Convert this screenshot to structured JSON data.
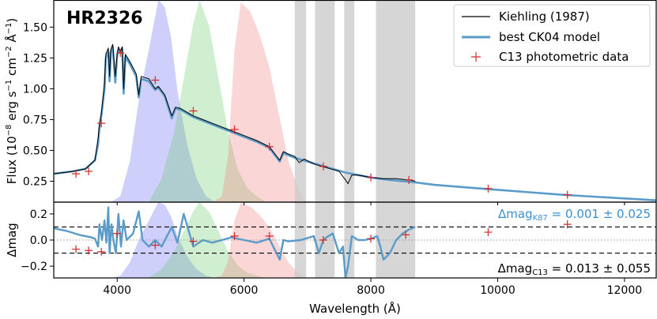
{
  "chart_data": [
    {
      "type": "line",
      "panel": "top",
      "title": "HR2326",
      "ylabel": "Flux (10^-8 erg s^-1 cm^-2 Å^-1)",
      "ylabel_parts": {
        "lead": "Flux (10",
        "exp1": "−8",
        "mid1": " erg s",
        "exp2": "−1",
        "mid2": " cm",
        "exp3": "−2",
        "mid3": " Å",
        "exp4": "−1",
        "tail": ")"
      },
      "xlim": [
        3000,
        12500
      ],
      "ylim": [
        0.08,
        1.72
      ],
      "yticks": [
        0.25,
        0.5,
        0.75,
        1.0,
        1.25,
        1.5
      ],
      "ytick_labels": [
        "0.25",
        "0.50",
        "0.75",
        "1.00",
        "1.25",
        "1.50"
      ],
      "legend": {
        "placement": "top-right",
        "entries": [
          "Kiehling (1987)",
          "best CK04 model",
          "C13 photometric data"
        ]
      },
      "series": [
        {
          "name": "Kiehling (1987)",
          "color": "#000000",
          "x": [
            3000,
            3300,
            3500,
            3650,
            3700,
            3720,
            3750,
            3800,
            3820,
            3860,
            3880,
            3900,
            3930,
            3970,
            4000,
            4020,
            4050,
            4080,
            4102,
            4130,
            4200,
            4300,
            4340,
            4380,
            4500,
            4600,
            4650,
            4750,
            4861,
            4920,
            5000,
            5200,
            5400,
            5600,
            5800,
            6000,
            6200,
            6400,
            6563,
            6620,
            6700,
            6800,
            6870,
            6950,
            7100,
            7300,
            7500,
            7600,
            7640,
            7700,
            7800,
            8000,
            8200,
            8400,
            8600,
            8700
          ],
          "y": [
            0.31,
            0.33,
            0.35,
            0.42,
            0.6,
            0.72,
            0.8,
            1.05,
            1.28,
            1.33,
            1.1,
            1.32,
            1.36,
            1.1,
            1.28,
            1.34,
            1.3,
            1.34,
            1.0,
            1.28,
            1.22,
            1.12,
            0.95,
            1.1,
            1.08,
            1.0,
            1.02,
            0.95,
            0.78,
            0.85,
            0.84,
            0.78,
            0.74,
            0.7,
            0.66,
            0.62,
            0.58,
            0.53,
            0.42,
            0.49,
            0.47,
            0.45,
            0.4,
            0.43,
            0.39,
            0.36,
            0.33,
            0.26,
            0.23,
            0.3,
            0.3,
            0.28,
            0.27,
            0.27,
            0.26,
            0.25
          ]
        },
        {
          "name": "best CK04 model",
          "color": "#5b9bc8",
          "x": [
            3000,
            3300,
            3500,
            3650,
            3700,
            3720,
            3750,
            3800,
            3820,
            3860,
            3880,
            3900,
            3930,
            3970,
            4000,
            4020,
            4050,
            4080,
            4102,
            4130,
            4200,
            4300,
            4340,
            4380,
            4500,
            4600,
            4650,
            4750,
            4861,
            4920,
            5000,
            5200,
            5400,
            5600,
            5800,
            6000,
            6200,
            6400,
            6563,
            6620,
            6700,
            6800,
            7000,
            7200,
            7400,
            7600,
            7800,
            8000,
            8300,
            8600,
            8700,
            9000,
            9500,
            10000,
            10500,
            11000,
            11500,
            12000,
            12500
          ],
          "y": [
            0.31,
            0.33,
            0.35,
            0.42,
            0.55,
            0.68,
            0.78,
            1.0,
            1.25,
            1.3,
            1.06,
            1.3,
            1.34,
            1.05,
            1.27,
            1.32,
            1.29,
            1.33,
            0.96,
            1.26,
            1.2,
            1.1,
            0.93,
            1.08,
            1.06,
            0.99,
            1.01,
            0.94,
            0.76,
            0.84,
            0.83,
            0.77,
            0.73,
            0.69,
            0.65,
            0.61,
            0.57,
            0.52,
            0.41,
            0.48,
            0.46,
            0.44,
            0.41,
            0.38,
            0.35,
            0.32,
            0.3,
            0.28,
            0.26,
            0.245,
            0.24,
            0.22,
            0.2,
            0.18,
            0.16,
            0.14,
            0.125,
            0.11,
            0.095
          ]
        },
        {
          "name": "C13 photometric data",
          "color": "#d62728",
          "marker": "+",
          "x": [
            3350,
            3550,
            3750,
            4050,
            4600,
            5200,
            5850,
            6400,
            7250,
            8000,
            8600,
            9850,
            11100
          ],
          "y": [
            0.31,
            0.33,
            0.72,
            1.29,
            1.07,
            0.82,
            0.67,
            0.53,
            0.37,
            0.28,
            0.26,
            0.19,
            0.14
          ]
        }
      ],
      "filters": [
        {
          "name": "blue",
          "color": "#6b6bf5",
          "x": [
            3900,
            4050,
            4200,
            4350,
            4500,
            4650,
            4750,
            4850,
            4950,
            5100,
            5250,
            5400,
            5550
          ],
          "y": [
            0,
            0.05,
            0.35,
            0.9,
            1.3,
            1.72,
            1.66,
            1.4,
            0.95,
            0.5,
            0.2,
            0.05,
            0
          ]
        },
        {
          "name": "green",
          "color": "#6cc96c",
          "x": [
            4500,
            4700,
            4900,
            5050,
            5200,
            5300,
            5450,
            5600,
            5750,
            5900,
            6050,
            6200,
            6350
          ],
          "y": [
            0,
            0.2,
            0.6,
            1.05,
            1.52,
            1.72,
            1.5,
            1.05,
            0.6,
            0.28,
            0.12,
            0.05,
            0
          ]
        },
        {
          "name": "red",
          "color": "#f08080",
          "x": [
            5500,
            5650,
            5750,
            5850,
            5950,
            6100,
            6250,
            6400,
            6550,
            6700,
            6850,
            6950,
            7000
          ],
          "y": [
            0,
            0.05,
            0.4,
            1.3,
            1.7,
            1.62,
            1.42,
            1.15,
            0.75,
            0.35,
            0.12,
            0.03,
            0
          ]
        }
      ],
      "grey_bands": [
        [
          6800,
          6980
        ],
        [
          7120,
          7430
        ],
        [
          7580,
          7740
        ],
        [
          8080,
          8700
        ]
      ]
    },
    {
      "type": "line",
      "panel": "bottom",
      "xlabel": "Wavelength (Å)",
      "ylabel": "Δmag",
      "xlim": [
        3000,
        12500
      ],
      "ylim": [
        -0.29,
        0.29
      ],
      "xticks": [
        4000,
        6000,
        8000,
        10000,
        12000
      ],
      "xtick_labels": [
        "4000",
        "6000",
        "8000",
        "10000",
        "12000"
      ],
      "yticks": [
        -0.2,
        0.0,
        0.2
      ],
      "ytick_labels": [
        "−0.2",
        "0.0",
        "0.2"
      ],
      "ref_lines": {
        "dotted": 0.0,
        "dashed": [
          0.1,
          -0.1
        ]
      },
      "annotations": {
        "k87": {
          "main": "Δmag",
          "sub": "K87",
          "rest": " = 0.001 ± 0.025",
          "color": "#3b8fd0"
        },
        "c13": {
          "main": "Δmag",
          "sub": "C13",
          "rest": " = 0.013 ± 0.055",
          "color": "#000000"
        }
      },
      "series": [
        {
          "name": "K87 residual",
          "color": "#5b9bc8",
          "x": [
            3000,
            3200,
            3400,
            3600,
            3650,
            3700,
            3720,
            3760,
            3800,
            3830,
            3860,
            3880,
            3910,
            3940,
            3980,
            4020,
            4060,
            4100,
            4150,
            4250,
            4340,
            4400,
            4500,
            4600,
            4700,
            4861,
            4950,
            5050,
            5200,
            5350,
            5500,
            5650,
            5800,
            6000,
            6200,
            6400,
            6563,
            6620,
            6700,
            6900,
            7100,
            7180,
            7250,
            7300,
            7400,
            7500,
            7560,
            7600,
            7640,
            7700,
            7800,
            7900,
            8000,
            8100,
            8150,
            8200,
            8300,
            8400,
            8500,
            8600,
            8700
          ],
          "y": [
            0.09,
            0.07,
            0.04,
            0.02,
            0.01,
            -0.05,
            0.12,
            0.0,
            0.15,
            -0.02,
            0.25,
            -0.1,
            0.12,
            0.0,
            -0.1,
            0.2,
            -0.05,
            0.15,
            0.0,
            0.05,
            0.22,
            0.0,
            -0.05,
            0.0,
            -0.05,
            0.1,
            -0.02,
            0.2,
            -0.05,
            0.0,
            -0.02,
            0.0,
            0.02,
            0.0,
            -0.02,
            0.01,
            -0.15,
            0.0,
            -0.01,
            0.0,
            0.03,
            -0.1,
            0.0,
            0.02,
            0.05,
            -0.1,
            -0.05,
            -0.29,
            -0.2,
            0.03,
            0.0,
            0.0,
            0.01,
            0.03,
            -0.05,
            -0.15,
            -0.1,
            0.0,
            0.05,
            0.08,
            0.1
          ]
        },
        {
          "name": "C13 residual",
          "color": "#d62728",
          "marker": "+",
          "x": [
            3350,
            3550,
            3750,
            4000,
            4600,
            5200,
            5850,
            6400,
            7250,
            8000,
            8550,
            9850,
            11100
          ],
          "y": [
            -0.07,
            -0.08,
            -0.09,
            0.05,
            -0.04,
            -0.01,
            0.03,
            0.03,
            0.0,
            0.01,
            0.04,
            0.06,
            0.12
          ]
        }
      ]
    }
  ]
}
